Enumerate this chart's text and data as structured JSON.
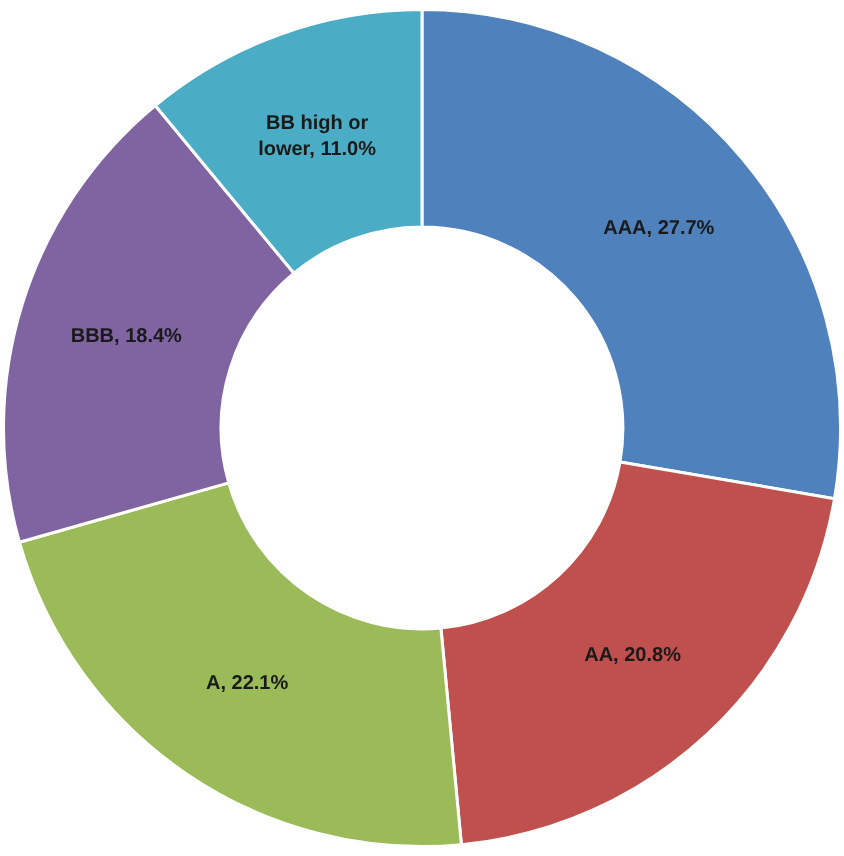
{
  "chart_data": {
    "type": "donut",
    "categories": [
      "AAA",
      "AA",
      "A",
      "BBB",
      "BB high or lower"
    ],
    "values": [
      27.7,
      20.8,
      22.1,
      18.4,
      11.0
    ],
    "value_labels": [
      "27.7%",
      "20.8%",
      "22.1%",
      "18.4%",
      "11.0%"
    ],
    "colors": [
      "#4f81bd",
      "#c0504d",
      "#9bbb59",
      "#8064a2",
      "#4bacc6"
    ],
    "legend": false
  }
}
